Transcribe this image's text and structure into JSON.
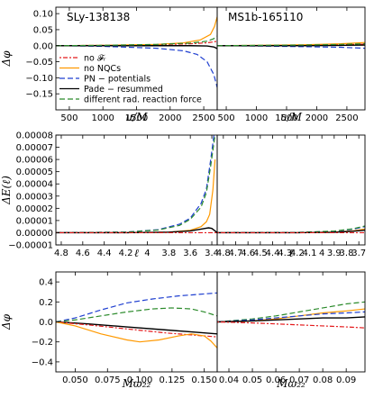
{
  "colors": {
    "no_fr": "#e41a1c",
    "no_nqc": "#ff9900",
    "pn": "#1f3fd0",
    "pade": "#000000",
    "rr": "#2a8a2a"
  },
  "legend": [
    {
      "key": "no_fr",
      "label": "no 𝓕ᵣ",
      "dash": "2,2,5,2"
    },
    {
      "key": "no_nqc",
      "label": "no NQCs",
      "dash": ""
    },
    {
      "key": "pn",
      "label": "PN − potentials",
      "dash": "6,3"
    },
    {
      "key": "pade",
      "label": "Pade − resummed",
      "dash": ""
    },
    {
      "key": "rr",
      "label": "different rad. reaction force",
      "dash": "6,3"
    }
  ],
  "chart_data": [
    {
      "type": "line",
      "panel": "top-left",
      "title": "SLy-138138",
      "xlabel": "u/M",
      "ylabel": "Δφ",
      "xlim": [
        300,
        2700
      ],
      "ylim": [
        -0.2,
        0.12
      ],
      "xticks": [
        500,
        1000,
        1500,
        2000,
        2500
      ],
      "yticks": [
        -0.15,
        -0.1,
        -0.05,
        0.0,
        0.05,
        0.1
      ],
      "yticklabels": [
        "−0.15",
        "−0.10",
        "−0.05",
        "0.00",
        "0.05",
        "0.10"
      ],
      "legend_position": "lower-left",
      "series": [
        {
          "key": "no_fr",
          "x": [
            300,
            1000,
            1800,
            2300,
            2550,
            2650,
            2700
          ],
          "y": [
            0,
            0.001,
            0.003,
            0.006,
            0.009,
            0.012,
            0.014
          ]
        },
        {
          "key": "no_nqc",
          "x": [
            300,
            1000,
            1800,
            2200,
            2450,
            2600,
            2660,
            2700
          ],
          "y": [
            0,
            0.001,
            0.004,
            0.009,
            0.018,
            0.035,
            0.06,
            0.09
          ]
        },
        {
          "key": "pn",
          "x": [
            300,
            1000,
            1800,
            2200,
            2400,
            2550,
            2650,
            2700
          ],
          "y": [
            0,
            -0.002,
            -0.008,
            -0.016,
            -0.027,
            -0.05,
            -0.09,
            -0.13
          ]
        },
        {
          "key": "pade",
          "x": [
            300,
            1000,
            1800,
            2300,
            2550,
            2650,
            2700
          ],
          "y": [
            0,
            0,
            0,
            0,
            -0.001,
            -0.004,
            -0.009
          ]
        },
        {
          "key": "rr",
          "x": [
            300,
            1000,
            1800,
            2300,
            2550,
            2650,
            2700
          ],
          "y": [
            0,
            0.001,
            0.004,
            0.008,
            0.014,
            0.022,
            0.03
          ]
        }
      ]
    },
    {
      "type": "line",
      "panel": "top-right",
      "title": "MS1b-165110",
      "xlabel": "u/M",
      "ylabel": "",
      "xlim": [
        350,
        2800
      ],
      "ylim": [
        -0.2,
        0.12
      ],
      "xticks": [
        500,
        1000,
        1500,
        2000,
        2500
      ],
      "yticks": [],
      "series": [
        {
          "key": "no_fr",
          "x": [
            350,
            1000,
            1800,
            2400,
            2800
          ],
          "y": [
            0,
            0,
            0.001,
            0.003,
            0.005
          ]
        },
        {
          "key": "no_nqc",
          "x": [
            350,
            1000,
            1800,
            2400,
            2800
          ],
          "y": [
            0,
            0.001,
            0.003,
            0.006,
            0.01
          ]
        },
        {
          "key": "pn",
          "x": [
            350,
            1000,
            1800,
            2400,
            2800
          ],
          "y": [
            0,
            -0.001,
            -0.003,
            -0.005,
            -0.008
          ]
        },
        {
          "key": "pade",
          "x": [
            350,
            1000,
            1800,
            2400,
            2800
          ],
          "y": [
            0,
            0,
            0,
            0.001,
            0.002
          ]
        },
        {
          "key": "rr",
          "x": [
            350,
            1000,
            1800,
            2400,
            2800
          ],
          "y": [
            0,
            0.001,
            0.002,
            0.004,
            0.006
          ]
        }
      ]
    },
    {
      "type": "line",
      "panel": "middle-left",
      "xlabel": "ℓ",
      "ylabel": "ΔE(ℓ)",
      "xlim": [
        4.85,
        3.35
      ],
      "ylim": [
        -1e-05,
        8e-05
      ],
      "xticks": [
        4.8,
        4.6,
        4.4,
        4.2,
        4.0,
        3.8,
        3.6,
        3.4
      ],
      "yticks": [
        -1e-05,
        0,
        1e-05,
        2e-05,
        3e-05,
        4e-05,
        5e-05,
        6e-05,
        7e-05,
        8e-05
      ],
      "yticklabels": [
        "−0.00001",
        "0.00000",
        "0.00001",
        "0.00002",
        "0.00003",
        "0.00004",
        "0.00005",
        "0.00006",
        "0.00007",
        "0.00008"
      ],
      "series": [
        {
          "key": "no_nqc",
          "x": [
            4.85,
            4.2,
            3.8,
            3.6,
            3.5,
            3.45,
            3.42,
            3.39,
            3.37
          ],
          "y": [
            0,
            0,
            4e-07,
            2e-06,
            5e-06,
            9e-06,
            1.5e-05,
            3.5e-05,
            6e-05
          ]
        },
        {
          "key": "pn",
          "x": [
            4.85,
            4.2,
            3.9,
            3.7,
            3.6,
            3.5,
            3.45,
            3.41,
            3.38
          ],
          "y": [
            0,
            5e-07,
            2.5e-06,
            7e-06,
            1.2e-05,
            2.4e-05,
            3.6e-05,
            6e-05,
            8e-05
          ]
        },
        {
          "key": "rr",
          "x": [
            4.85,
            4.2,
            3.9,
            3.7,
            3.6,
            3.5,
            3.45,
            3.41,
            3.37
          ],
          "y": [
            0,
            5e-07,
            2.2e-06,
            6e-06,
            1.1e-05,
            2.1e-05,
            3.3e-05,
            5.5e-05,
            8e-05
          ]
        },
        {
          "key": "pade",
          "x": [
            4.85,
            4.2,
            3.8,
            3.6,
            3.5,
            3.43,
            3.4,
            3.37,
            3.35
          ],
          "y": [
            0,
            0,
            5e-07,
            1.5e-06,
            3e-06,
            4e-06,
            3.5e-06,
            1.5e-06,
            0
          ]
        },
        {
          "key": "no_fr",
          "x": [
            4.85,
            4.2,
            3.8,
            3.5,
            3.35
          ],
          "y": [
            0,
            0,
            0,
            0,
            0
          ]
        }
      ]
    },
    {
      "type": "line",
      "panel": "middle-right",
      "xlabel": "ℓ",
      "ylabel": "",
      "xlim": [
        4.85,
        3.65
      ],
      "ylim": [
        -1e-05,
        8e-05
      ],
      "xticks": [
        4.8,
        4.7,
        4.6,
        4.5,
        4.4,
        4.3,
        4.2,
        4.1,
        4.0,
        3.9,
        3.8,
        3.7
      ],
      "yticks": [],
      "series": [
        {
          "key": "no_nqc",
          "x": [
            4.85,
            4.2,
            3.9,
            3.75,
            3.65
          ],
          "y": [
            0,
            0,
            5e-07,
            1.5e-06,
            3e-06
          ]
        },
        {
          "key": "pn",
          "x": [
            4.85,
            4.2,
            3.9,
            3.75,
            3.65
          ],
          "y": [
            0,
            2e-07,
            1.2e-06,
            2.8e-06,
            5e-06
          ]
        },
        {
          "key": "rr",
          "x": [
            4.85,
            4.2,
            3.9,
            3.75,
            3.65
          ],
          "y": [
            0,
            2e-07,
            1.4e-06,
            3.2e-06,
            5.5e-06
          ]
        },
        {
          "key": "pade",
          "x": [
            4.85,
            4.2,
            3.9,
            3.75,
            3.65
          ],
          "y": [
            0,
            0,
            4e-07,
            1.2e-06,
            2e-06
          ]
        },
        {
          "key": "no_fr",
          "x": [
            4.85,
            4.2,
            3.65
          ],
          "y": [
            0,
            0,
            0
          ]
        }
      ]
    },
    {
      "type": "line",
      "panel": "bottom-left",
      "xlabel": "Mω₂₂",
      "ylabel": "Δφ",
      "xlim": [
        0.035,
        0.16
      ],
      "ylim": [
        -0.5,
        0.5
      ],
      "xticks": [
        0.05,
        0.075,
        0.1,
        0.125,
        0.15
      ],
      "xticklabels": [
        "0.050",
        "0.075",
        "0.100",
        "0.125",
        "0.150"
      ],
      "yticks": [
        -0.4,
        -0.2,
        0,
        0.2,
        0.4
      ],
      "yticklabels": [
        "−0.4",
        "−0.2",
        "0.0",
        "0.2",
        "0.4"
      ],
      "series": [
        {
          "key": "pn",
          "x": [
            0.035,
            0.05,
            0.07,
            0.09,
            0.11,
            0.13,
            0.15,
            0.16
          ],
          "y": [
            0,
            0.04,
            0.12,
            0.19,
            0.23,
            0.26,
            0.28,
            0.29
          ]
        },
        {
          "key": "rr",
          "x": [
            0.035,
            0.05,
            0.07,
            0.09,
            0.11,
            0.125,
            0.14,
            0.15,
            0.16
          ],
          "y": [
            0,
            0.02,
            0.06,
            0.1,
            0.13,
            0.14,
            0.13,
            0.1,
            0.06
          ]
        },
        {
          "key": "pade",
          "x": [
            0.035,
            0.06,
            0.09,
            0.12,
            0.14,
            0.16
          ],
          "y": [
            0,
            -0.02,
            -0.05,
            -0.08,
            -0.1,
            -0.12
          ]
        },
        {
          "key": "no_fr",
          "x": [
            0.035,
            0.06,
            0.09,
            0.12,
            0.14,
            0.16
          ],
          "y": [
            0,
            -0.03,
            -0.07,
            -0.11,
            -0.13,
            -0.15
          ]
        },
        {
          "key": "no_nqc",
          "x": [
            0.035,
            0.05,
            0.07,
            0.09,
            0.1,
            0.115,
            0.13,
            0.14,
            0.15,
            0.155,
            0.16
          ],
          "y": [
            0,
            -0.04,
            -0.12,
            -0.18,
            -0.2,
            -0.18,
            -0.14,
            -0.12,
            -0.14,
            -0.19,
            -0.26
          ]
        }
      ]
    },
    {
      "type": "line",
      "panel": "bottom-right",
      "xlabel": "Mω₂₂",
      "ylabel": "",
      "xlim": [
        0.035,
        0.098
      ],
      "ylim": [
        -0.5,
        0.5
      ],
      "xticks": [
        0.04,
        0.05,
        0.06,
        0.07,
        0.08,
        0.09
      ],
      "xticklabels": [
        "0.04",
        "0.05",
        "0.06",
        "0.07",
        "0.08",
        "0.09"
      ],
      "yticks": [],
      "series": [
        {
          "key": "rr",
          "x": [
            0.035,
            0.05,
            0.06,
            0.07,
            0.08,
            0.09,
            0.098
          ],
          "y": [
            0,
            0.03,
            0.06,
            0.1,
            0.14,
            0.18,
            0.2
          ]
        },
        {
          "key": "no_nqc",
          "x": [
            0.035,
            0.05,
            0.06,
            0.07,
            0.08,
            0.09,
            0.098
          ],
          "y": [
            0,
            0.01,
            0.03,
            0.06,
            0.09,
            0.11,
            0.13
          ]
        },
        {
          "key": "pn",
          "x": [
            0.035,
            0.05,
            0.06,
            0.07,
            0.08,
            0.09,
            0.098
          ],
          "y": [
            0,
            0.02,
            0.04,
            0.06,
            0.08,
            0.09,
            0.1
          ]
        },
        {
          "key": "pade",
          "x": [
            0.035,
            0.05,
            0.06,
            0.07,
            0.08,
            0.09,
            0.098
          ],
          "y": [
            0,
            0.01,
            0.02,
            0.03,
            0.04,
            0.04,
            0.05
          ]
        },
        {
          "key": "no_fr",
          "x": [
            0.035,
            0.05,
            0.06,
            0.07,
            0.08,
            0.09,
            0.098
          ],
          "y": [
            0,
            -0.01,
            -0.02,
            -0.03,
            -0.04,
            -0.05,
            -0.06
          ]
        }
      ]
    }
  ]
}
